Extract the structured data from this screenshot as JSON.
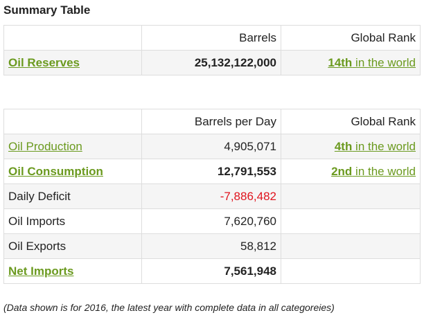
{
  "summary_title": "Summary Table",
  "table1": {
    "headers": [
      "",
      "Barrels",
      "Global Rank"
    ],
    "rows": [
      {
        "label": "Oil Reserves",
        "value": "25,132,122,000",
        "rank_num": "14th",
        "rank_text": " in the world"
      }
    ]
  },
  "table2": {
    "headers": [
      "",
      "Barrels per Day",
      "Global Rank"
    ],
    "rows": [
      {
        "label": "Oil Production",
        "value": "4,905,071",
        "rank_num": "4th",
        "rank_text": " in the world"
      },
      {
        "label": "Oil Consumption",
        "value": "12,791,553",
        "rank_num": "2nd",
        "rank_text": " in the world"
      },
      {
        "label": "Daily Deficit",
        "value": "-7,886,482",
        "rank_num": "",
        "rank_text": ""
      },
      {
        "label": "Oil Imports",
        "value": "7,620,760",
        "rank_num": "",
        "rank_text": ""
      },
      {
        "label": "Oil Exports",
        "value": "58,812",
        "rank_num": "",
        "rank_text": ""
      },
      {
        "label": "Net Imports",
        "value": "7,561,948",
        "rank_num": "",
        "rank_text": ""
      }
    ]
  },
  "footnote": "(Data shown is for 2016, the latest year with complete data in all categoreies)",
  "colors": {
    "link": "#6b9a1f",
    "negative": "#e0141e",
    "row_alt": "#f5f5f5",
    "border": "#dddddd"
  }
}
